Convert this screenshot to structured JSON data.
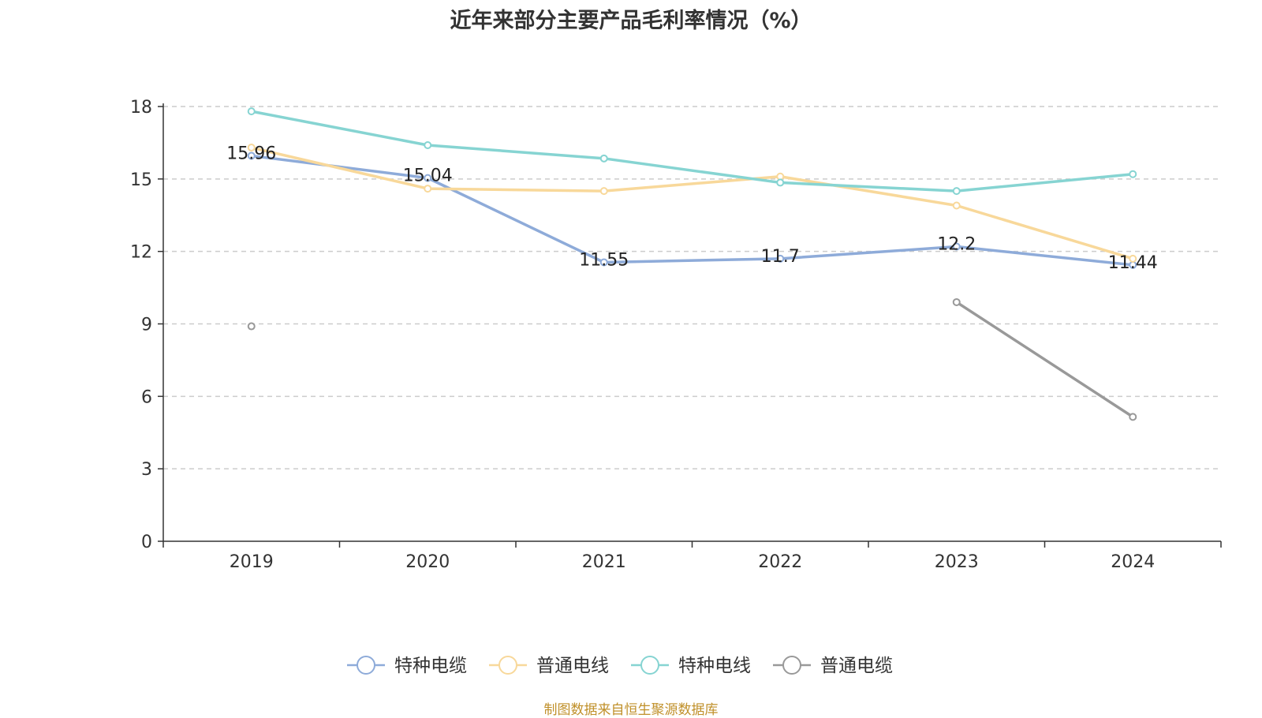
{
  "chart_data": {
    "type": "line",
    "title": "近年来部分主要产品毛利率情况（%）",
    "xlabel": "",
    "ylabel": "",
    "categories": [
      "2019",
      "2020",
      "2021",
      "2022",
      "2023",
      "2024"
    ],
    "ylim": [
      0,
      18
    ],
    "yticks": [
      0,
      3,
      6,
      9,
      12,
      15,
      18
    ],
    "grid": true,
    "legend_position": "bottom",
    "series": [
      {
        "name": "特种电缆",
        "color": "#8eabd9",
        "values": [
          15.96,
          15.04,
          11.55,
          11.7,
          12.2,
          11.44
        ],
        "show_labels": true
      },
      {
        "name": "普通电线",
        "color": "#f8d89a",
        "values": [
          16.3,
          14.6,
          14.5,
          15.1,
          13.9,
          11.7
        ],
        "show_labels": false
      },
      {
        "name": "特种电线",
        "color": "#86d4d2",
        "values": [
          17.8,
          16.4,
          15.85,
          14.85,
          14.5,
          15.2
        ],
        "show_labels": false
      },
      {
        "name": "普通电缆",
        "color": "#999999",
        "values": [
          8.9,
          null,
          null,
          null,
          9.9,
          5.15
        ],
        "show_labels": false
      }
    ]
  },
  "source_note": "制图数据来自恒生聚源数据库"
}
